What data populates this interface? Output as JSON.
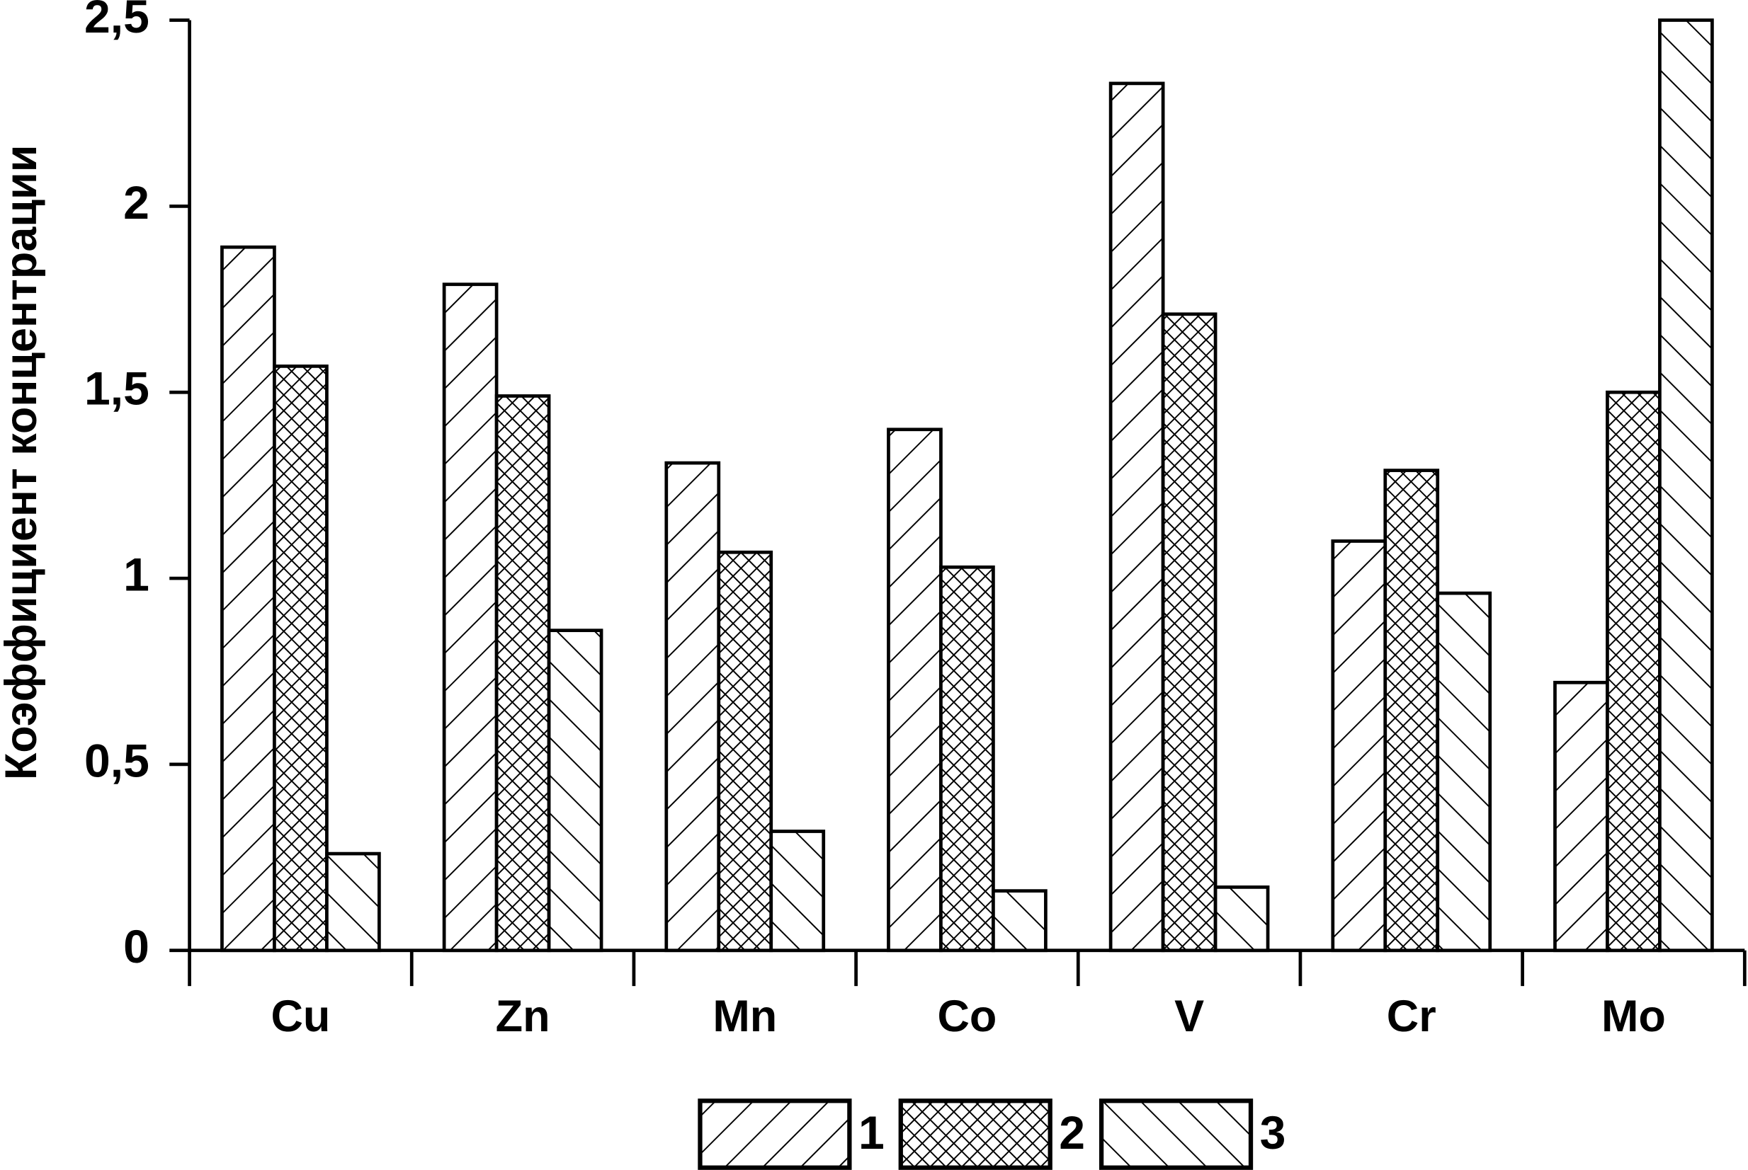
{
  "chart_data": {
    "type": "bar",
    "y_label": "Коэффициент концентрации",
    "categories": [
      "Cu",
      "Zn",
      "Mn",
      "Co",
      "V",
      "Cr",
      "Mo"
    ],
    "series": [
      {
        "name": "1",
        "color": "#000000",
        "hatch": "forward",
        "values": [
          1.89,
          1.79,
          1.31,
          1.4,
          2.33,
          1.1,
          0.72
        ]
      },
      {
        "name": "2",
        "color": "#000000",
        "hatch": "cross",
        "values": [
          1.57,
          1.49,
          1.07,
          1.03,
          1.71,
          1.29,
          1.5
        ]
      },
      {
        "name": "3",
        "color": "#000000",
        "hatch": "back",
        "values": [
          0.26,
          0.86,
          0.32,
          0.16,
          0.17,
          0.96,
          2.5
        ]
      }
    ],
    "ylim": [
      0,
      2.5
    ],
    "yticks": [
      0,
      {
        "value": 0.5,
        "label": "0,5"
      },
      1,
      {
        "value": 1.5,
        "label": "1,5"
      },
      2,
      {
        "value": 2.5,
        "label": "2,5"
      }
    ],
    "grid": false,
    "legend": "bottom"
  }
}
